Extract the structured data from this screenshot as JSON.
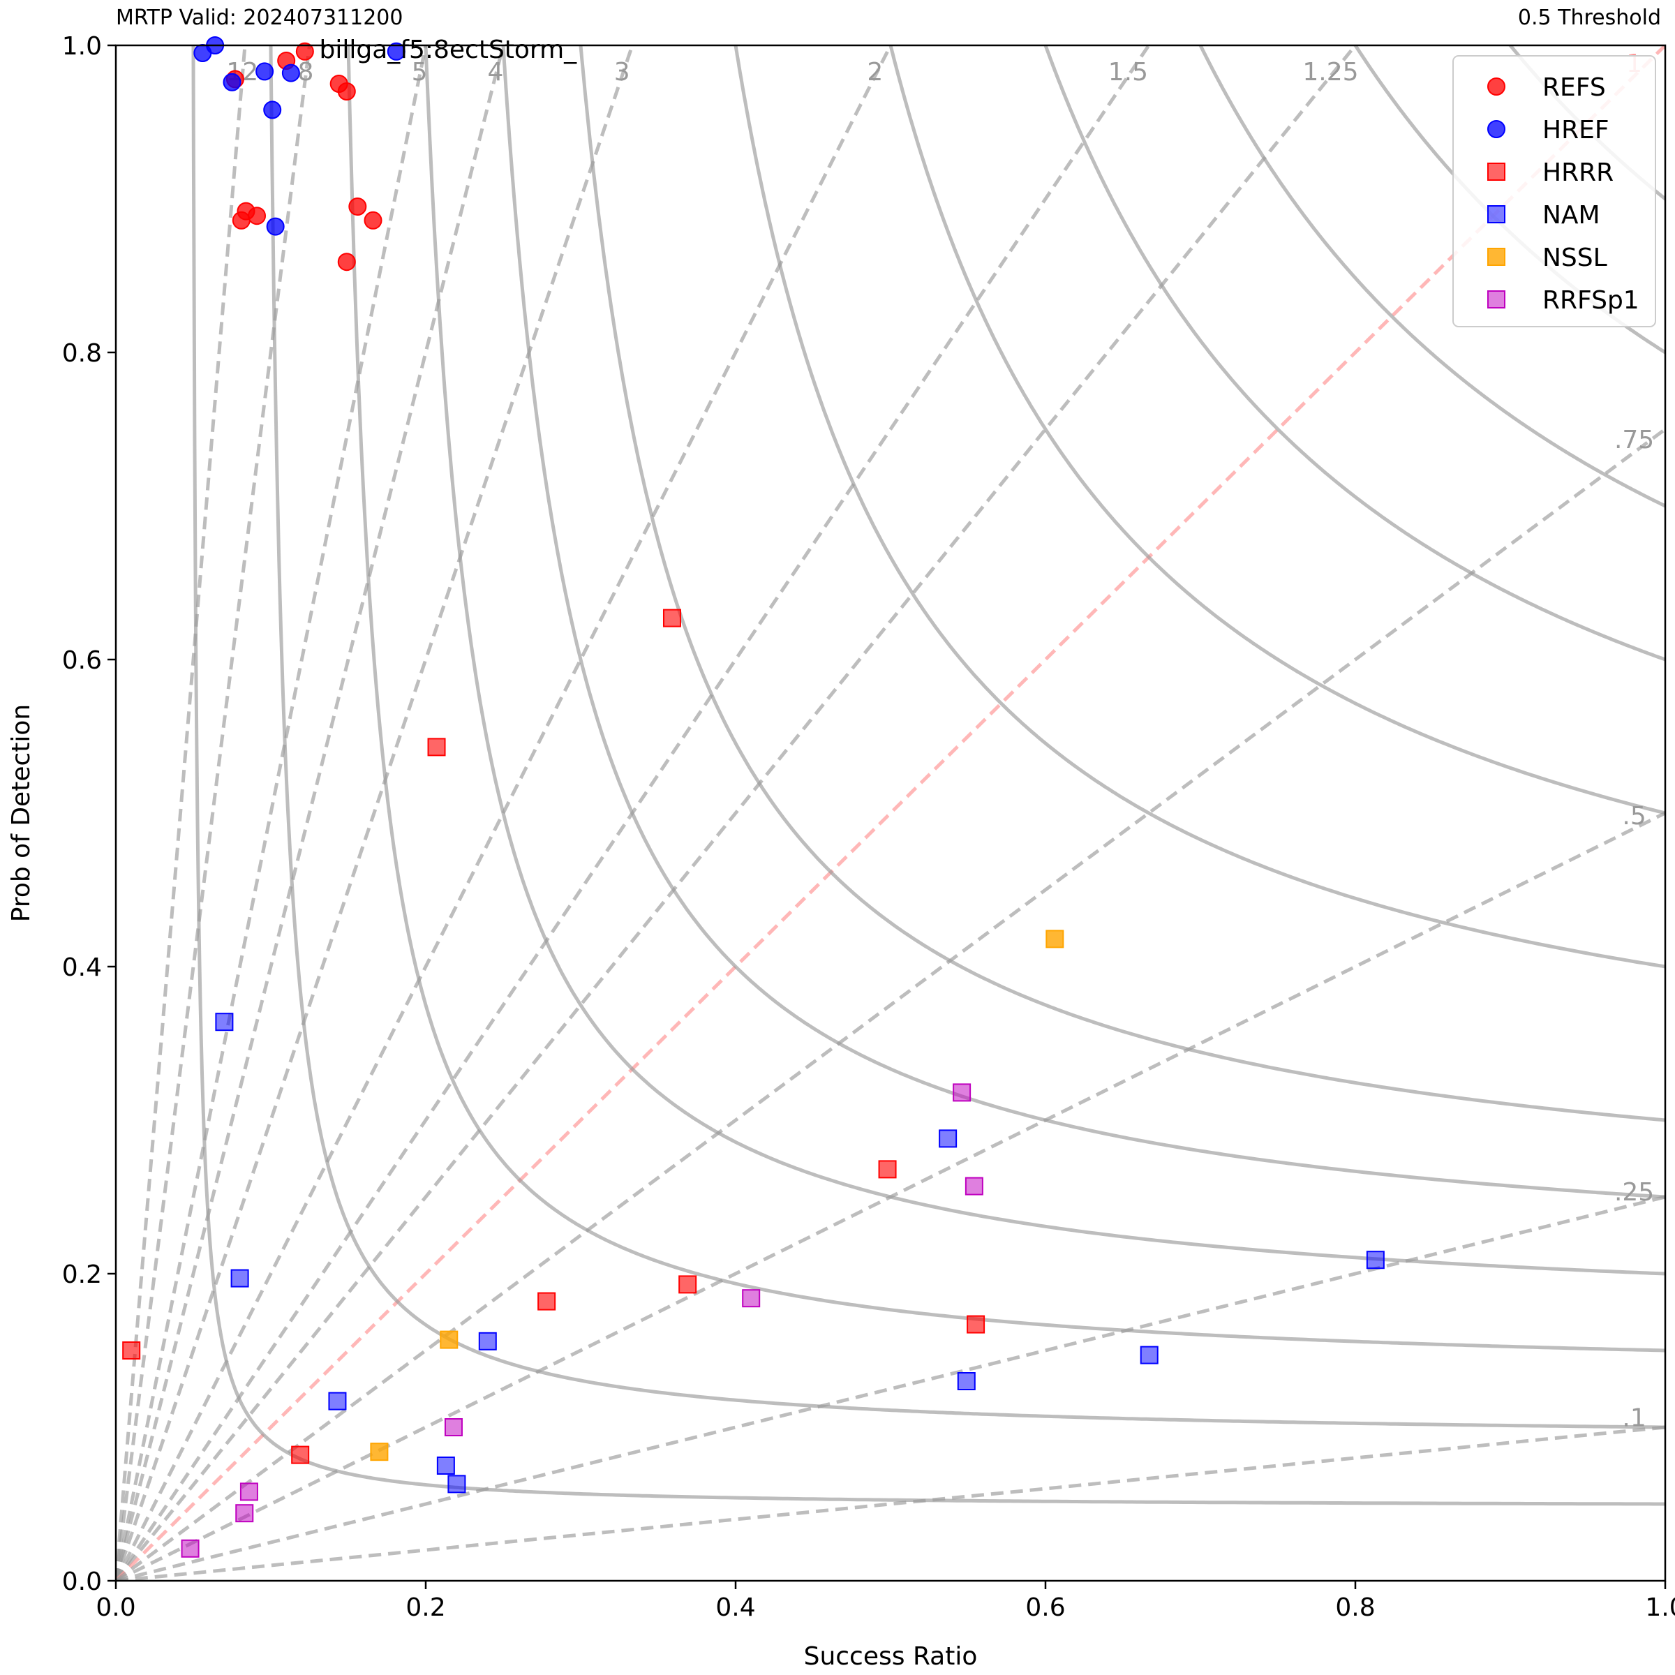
{
  "header": {
    "left": "MRTP Valid: 202407311200",
    "right": "0.5 Threshold"
  },
  "chart_data": {
    "type": "scatter",
    "title": "",
    "xlabel": "Success Ratio",
    "ylabel": "Prob of Detection",
    "xlim": [
      0,
      1
    ],
    "ylim": [
      0,
      1
    ],
    "x_ticks": [
      "0.0",
      "0.2",
      "0.4",
      "0.6",
      "0.8",
      "1.0"
    ],
    "y_ticks": [
      "0.0",
      "0.2",
      "0.4",
      "0.6",
      "0.8",
      "1.0"
    ],
    "grid": false,
    "legend_position": "top-right",
    "bias_lines": [
      {
        "value": 12,
        "label": "12"
      },
      {
        "value": 8,
        "label": "8"
      },
      {
        "value": 5,
        "label": "5"
      },
      {
        "value": 4,
        "label": "4"
      },
      {
        "value": 3,
        "label": "3"
      },
      {
        "value": 2,
        "label": "2"
      },
      {
        "value": 1.5,
        "label": "1.5"
      },
      {
        "value": 1.25,
        "label": "1.25"
      },
      {
        "value": 1,
        "label": "1"
      },
      {
        "value": 0.75,
        "label": ".75"
      },
      {
        "value": 0.5,
        "label": ".5"
      },
      {
        "value": 0.25,
        "label": ".25"
      },
      {
        "value": 0.1,
        "label": ".1"
      }
    ],
    "csi_levels": [
      0.05,
      0.1,
      0.15,
      0.2,
      0.25,
      0.3,
      0.4,
      0.5,
      0.6,
      0.7,
      0.8,
      0.9
    ],
    "annotation": {
      "text": "billga_f5:8ectStorm_",
      "x": 0.125,
      "y": 1.0
    },
    "series": [
      {
        "name": "REFS",
        "marker": "circle",
        "color": "#ff0000",
        "alpha": 0.75,
        "points": [
          [
            0.077,
            0.978
          ],
          [
            0.11,
            0.99
          ],
          [
            0.122,
            0.996
          ],
          [
            0.144,
            0.975
          ],
          [
            0.149,
            0.97
          ],
          [
            0.081,
            0.886
          ],
          [
            0.084,
            0.892
          ],
          [
            0.091,
            0.889
          ],
          [
            0.156,
            0.895
          ],
          [
            0.166,
            0.886
          ],
          [
            0.149,
            0.859
          ]
        ]
      },
      {
        "name": "HREF",
        "marker": "circle",
        "color": "#0000ff",
        "alpha": 0.75,
        "points": [
          [
            0.056,
            0.995
          ],
          [
            0.064,
            1.0
          ],
          [
            0.075,
            0.976
          ],
          [
            0.096,
            0.983
          ],
          [
            0.113,
            0.982
          ],
          [
            0.101,
            0.958
          ],
          [
            0.103,
            0.882
          ],
          [
            0.181,
            0.996
          ]
        ]
      },
      {
        "name": "HRRR",
        "marker": "square",
        "color": "#ff0000",
        "alpha": 0.6,
        "points": [
          [
            0.01,
            0.15
          ],
          [
            0.207,
            0.543
          ],
          [
            0.359,
            0.627
          ],
          [
            0.369,
            0.193
          ],
          [
            0.555,
            0.167
          ],
          [
            0.498,
            0.268
          ],
          [
            0.278,
            0.182
          ],
          [
            0.119,
            0.082
          ]
        ]
      },
      {
        "name": "NAM",
        "marker": "square",
        "color": "#0000ff",
        "alpha": 0.5,
        "points": [
          [
            0.07,
            0.364
          ],
          [
            0.08,
            0.197
          ],
          [
            0.24,
            0.156
          ],
          [
            0.537,
            0.288
          ],
          [
            0.813,
            0.209
          ],
          [
            0.549,
            0.13
          ],
          [
            0.667,
            0.147
          ],
          [
            0.143,
            0.117
          ],
          [
            0.213,
            0.075
          ],
          [
            0.22,
            0.063
          ]
        ]
      },
      {
        "name": "NSSL",
        "marker": "square",
        "color": "#ffa500",
        "alpha": 0.8,
        "points": [
          [
            0.606,
            0.418
          ],
          [
            0.215,
            0.157
          ],
          [
            0.17,
            0.084
          ]
        ]
      },
      {
        "name": "RRFSp1",
        "marker": "square",
        "color": "#bf00bf",
        "alpha": 0.5,
        "points": [
          [
            0.546,
            0.318
          ],
          [
            0.554,
            0.257
          ],
          [
            0.41,
            0.184
          ],
          [
            0.218,
            0.1
          ],
          [
            0.086,
            0.058
          ],
          [
            0.083,
            0.044
          ],
          [
            0.048,
            0.021
          ]
        ]
      }
    ]
  }
}
